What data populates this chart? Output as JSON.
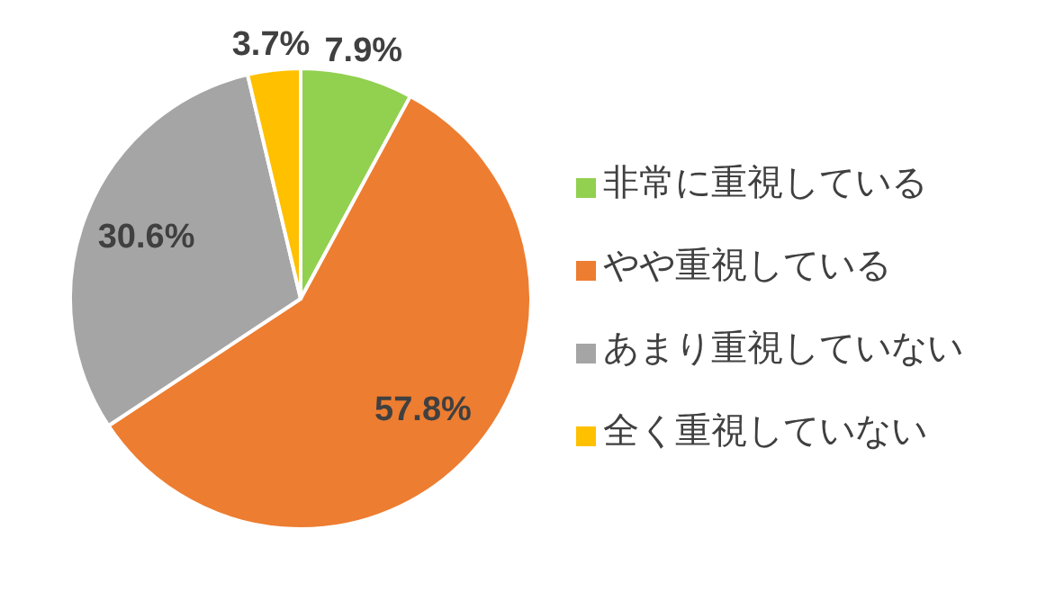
{
  "chart_data": {
    "type": "pie",
    "categories": [
      "非常に重視している",
      "やや重視している",
      "あまり重視していない",
      "全く重視していない"
    ],
    "values": [
      7.9,
      57.8,
      30.6,
      3.7
    ],
    "colors": [
      "#92d050",
      "#ed7d31",
      "#a5a5a5",
      "#ffc000"
    ],
    "value_labels": [
      "7.9%",
      "57.8%",
      "30.6%",
      "3.7%"
    ],
    "legend": "right"
  }
}
